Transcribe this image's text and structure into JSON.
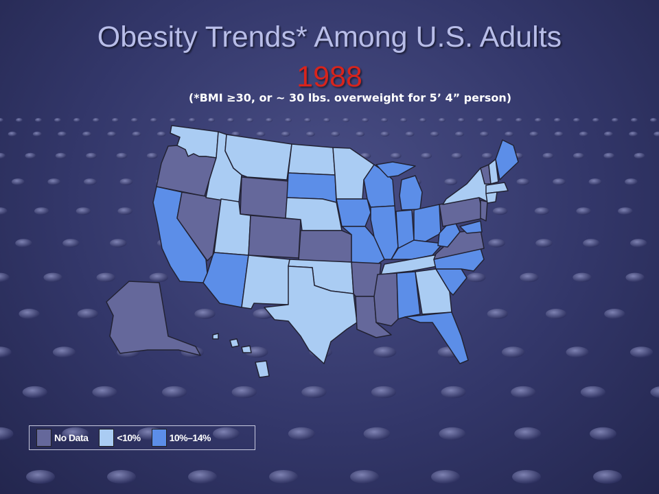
{
  "title": "Obesity Trends* Among U.S. Adults",
  "year": "1988",
  "subtitle": "(*BMI ≥30, or ~ 30 lbs. overweight for 5’ 4” person)",
  "colors": {
    "no_data": "#65689b",
    "lt10": "#aaccf3",
    "10to14": "#5c8ee8",
    "border": "#222233"
  },
  "legend": [
    {
      "label": "No Data",
      "color_key": "no_data"
    },
    {
      "label": "<10%",
      "color_key": "lt10"
    },
    {
      "label": "10%–14%",
      "color_key": "10to14"
    }
  ]
}
